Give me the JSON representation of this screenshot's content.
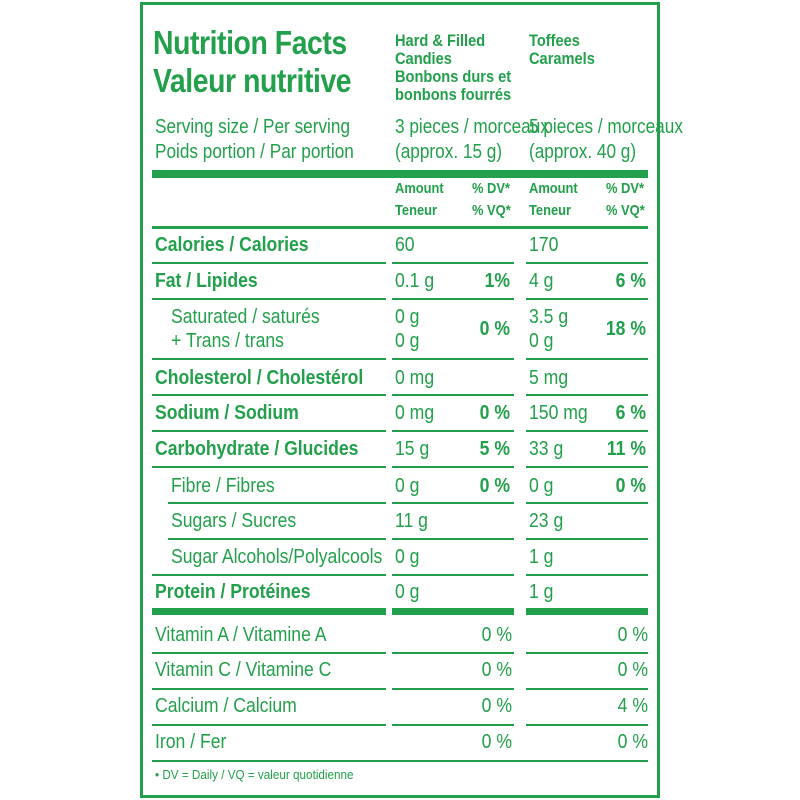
{
  "title_en": "Nutrition Facts",
  "title_fr": "Valeur nutritive",
  "columns": [
    {
      "name": "Hard & Filled Candies Bonbons durs et bonbons fourrés",
      "name_lines": [
        "Hard & Filled",
        "Candies",
        "Bonbons durs et",
        "bonbons fourrés"
      ],
      "serving_1": "3 pieces / morceaux",
      "serving_2": "(approx. 15 g)"
    },
    {
      "name": "Toffees Caramels",
      "name_lines": [
        "Toffees",
        "Caramels"
      ],
      "serving_1": "5 pieces / morceaux",
      "serving_2": "(approx. 40 g)"
    }
  ],
  "serving_label_1": "Serving size / Per serving",
  "serving_label_2": "Poids portion / Par portion",
  "sub_amount_1": "Amount",
  "sub_amount_2": "Teneur",
  "sub_dv_1": "% DV*",
  "sub_dv_2": "% VQ*",
  "rows": [
    {
      "label": "Calories / Calories",
      "bold": true,
      "indent": false,
      "c1": "60",
      "c1_dv": "",
      "c2": "170",
      "c2_dv": ""
    },
    {
      "label": "Fat / Lipides",
      "bold": true,
      "indent": false,
      "c1": "0.1 g",
      "c1_dv": "1%",
      "c2": "4 g",
      "c2_dv": "6 %"
    },
    {
      "label": "Saturated / saturés",
      "label2": "+ Trans / trans",
      "bold": false,
      "indent": true,
      "c1": "0 g",
      "c1b": "0 g",
      "c1_dv": "0 %",
      "c2": "3.5 g",
      "c2b": "0 g",
      "c2_dv": "18 %"
    },
    {
      "label": "Cholesterol / Cholestérol",
      "bold": true,
      "indent": false,
      "c1": "0 mg",
      "c1_dv": "",
      "c2": "5 mg",
      "c2_dv": ""
    },
    {
      "label": "Sodium / Sodium",
      "bold": true,
      "indent": false,
      "c1": "0 mg",
      "c1_dv": "0 %",
      "c2": "150 mg",
      "c2_dv": "6 %"
    },
    {
      "label": "Carbohydrate / Glucides",
      "bold": true,
      "indent": false,
      "c1": "15 g",
      "c1_dv": "5 %",
      "c2": "33 g",
      "c2_dv": "11 %"
    },
    {
      "label": "Fibre / Fibres",
      "bold": false,
      "indent": true,
      "c1": "0 g",
      "c1_dv": "0 %",
      "c2": "0 g",
      "c2_dv": "0 %"
    },
    {
      "label": "Sugars / Sucres",
      "bold": false,
      "indent": true,
      "c1": "11 g",
      "c1_dv": "",
      "c2": "23 g",
      "c2_dv": ""
    },
    {
      "label": "Sugar Alcohols/Polyalcools",
      "bold": false,
      "indent": true,
      "c1": "0 g",
      "c1_dv": "",
      "c2": "1 g",
      "c2_dv": ""
    },
    {
      "label": "Protein / Protéines",
      "bold": true,
      "indent": false,
      "c1": "0 g",
      "c1_dv": "",
      "c2": "1 g",
      "c2_dv": ""
    }
  ],
  "vitamins": [
    {
      "label": "Vitamin A / Vitamine A",
      "c1_dv": "0 %",
      "c2_dv": "0 %"
    },
    {
      "label": "Vitamin C / Vitamine C",
      "c1_dv": "0 %",
      "c2_dv": "0 %"
    },
    {
      "label": "Calcium / Calcium",
      "c1_dv": "0 %",
      "c2_dv": "4 %"
    },
    {
      "label": "Iron / Fer",
      "c1_dv": "0 %",
      "c2_dv": "0 %"
    }
  ],
  "footnote": "• DV = Daily / VQ = valeur quotidienne",
  "colors": {
    "green": "#22a04b",
    "background": "#ffffff"
  }
}
